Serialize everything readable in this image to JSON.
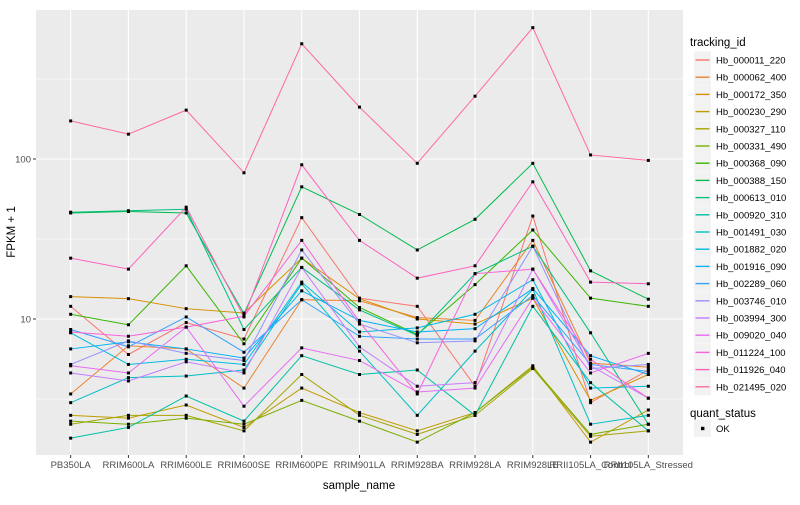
{
  "chart_data": {
    "type": "line",
    "title": "",
    "xlabel": "sample_name",
    "ylabel": "FPKM + 1",
    "y_scale": "log10",
    "ylim": [
      1.4,
      855
    ],
    "grid": "on",
    "legend_position": "right",
    "y_ticks": [
      {
        "label": "100",
        "value": 100
      },
      {
        "label": "10",
        "value": 10
      }
    ],
    "y_minor_gridlines": [
      3.1623,
      31.623,
      316.23
    ],
    "categories": [
      "PB350LA",
      "RRIM600LA",
      "RRIM600LE",
      "RRIM600SE",
      "RRIM600PE",
      "RRIM901LA",
      "RRIM928BA",
      "RRIM928LA",
      "RRIM928LE",
      "RRII105LA_Control",
      "RRII105LA_Stressed"
    ],
    "legend": {
      "title": "tracking_id",
      "quant_title": "quant_status",
      "quant_items": [
        {
          "label": "OK",
          "marker": "black-square"
        }
      ]
    },
    "series": [
      {
        "name": "Hb_000011_220",
        "color": "#F8766D",
        "values": [
          12,
          6.0,
          9.5,
          7.5,
          43,
          13.5,
          12,
          3.8,
          44,
          3.0,
          4.8
        ]
      },
      {
        "name": "Hb_000062_400",
        "color": "#EA8331",
        "values": [
          3.4,
          6.8,
          6.5,
          3.7,
          13.2,
          13,
          10.2,
          9.8,
          31,
          5.3,
          5.0
        ]
      },
      {
        "name": "Hb_000172_350",
        "color": "#D89000",
        "values": [
          13.8,
          13.4,
          11.6,
          10.9,
          24,
          13.4,
          10,
          9.3,
          13.5,
          3.1,
          4.5
        ]
      },
      {
        "name": "Hb_000230_290",
        "color": "#C09B00",
        "values": [
          2.5,
          2.4,
          2.9,
          2.1,
          3.7,
          2.6,
          2.0,
          2.6,
          5.1,
          1.7,
          2.7
        ]
      },
      {
        "name": "Hb_000327_110",
        "color": "#A3A500",
        "values": [
          2.2,
          2.5,
          2.5,
          2.0,
          4.5,
          2.5,
          1.9,
          2.5,
          4.9,
          1.85,
          2.0
        ]
      },
      {
        "name": "Hb_000331_490",
        "color": "#7CAE00",
        "values": [
          2.3,
          2.2,
          2.4,
          2.2,
          3.1,
          2.3,
          1.7,
          2.6,
          5.0,
          1.9,
          2.2
        ]
      },
      {
        "name": "Hb_000368_090",
        "color": "#39B600",
        "values": [
          10.7,
          9.2,
          21.5,
          7.0,
          24,
          11.8,
          8.0,
          16.4,
          36,
          13.5,
          12
        ]
      },
      {
        "name": "Hb_000388_150",
        "color": "#00BB4E",
        "values": [
          46,
          47,
          46,
          10.8,
          67,
          45,
          27,
          42,
          94,
          20,
          13.3
        ]
      },
      {
        "name": "Hb_000613_010",
        "color": "#00BF7D",
        "values": [
          46.5,
          47.5,
          48.5,
          8.6,
          21,
          11.4,
          7.9,
          19.2,
          28.5,
          8.2,
          2.2
        ]
      },
      {
        "name": "Hb_000920_310",
        "color": "#00C1A3",
        "values": [
          1.8,
          2.1,
          3.3,
          2.3,
          5.9,
          4.5,
          4.8,
          2.5,
          12,
          4.0,
          2.0
        ]
      },
      {
        "name": "Hb_001491_030",
        "color": "#00BFC4",
        "values": [
          3.0,
          4.3,
          4.4,
          4.8,
          16.6,
          6.3,
          2.5,
          6.3,
          15.3,
          2.2,
          2.5
        ]
      },
      {
        "name": "Hb_001882_020",
        "color": "#00BAE0",
        "values": [
          8.2,
          5.2,
          5.6,
          5.2,
          17,
          8.3,
          8.8,
          10.7,
          17.6,
          3.7,
          3.8
        ]
      },
      {
        "name": "Hb_001916_090",
        "color": "#00B0F6",
        "values": [
          6.5,
          7.2,
          6.5,
          5.7,
          15,
          9.8,
          8.3,
          8.7,
          15.5,
          5.9,
          4.5
        ]
      },
      {
        "name": "Hb_002289_060",
        "color": "#35A2FF",
        "values": [
          8.6,
          6.7,
          10.3,
          6.2,
          13.2,
          7.8,
          7.5,
          7.5,
          14,
          5.2,
          4.7
        ]
      },
      {
        "name": "Hb_003746_010",
        "color": "#9590FF",
        "values": [
          5.2,
          7.3,
          6.1,
          5.5,
          27,
          9.3,
          7.1,
          7.3,
          28.5,
          4.9,
          5.2
        ]
      },
      {
        "name": "Hb_003994_300",
        "color": "#C77CFF",
        "values": [
          4.6,
          4.1,
          5.4,
          4.6,
          21,
          6.7,
          3.8,
          4.0,
          20.5,
          5.1,
          3.2
        ]
      },
      {
        "name": "Hb_009020_040",
        "color": "#E76BF3",
        "values": [
          5.1,
          4.6,
          8.9,
          2.85,
          6.6,
          5.5,
          3.5,
          3.7,
          13.5,
          4.6,
          6.1
        ]
      },
      {
        "name": "Hb_011224_100",
        "color": "#FA62DB",
        "values": [
          8.3,
          7.8,
          8.9,
          10.4,
          31,
          9.6,
          3.4,
          19.2,
          20.5,
          5.6,
          3.2
        ]
      },
      {
        "name": "Hb_011926_040",
        "color": "#FF62BC",
        "values": [
          24,
          20.5,
          50,
          10.3,
          92,
          31,
          18,
          21.5,
          72,
          17,
          16.6
        ]
      },
      {
        "name": "Hb_021495_020",
        "color": "#FF6A98",
        "values": [
          173,
          143,
          202,
          82,
          525,
          211,
          94,
          247,
          662,
          106,
          98
        ]
      }
    ],
    "colors": {
      "panel_background": "#EBEBEB",
      "gridline": "#FFFFFF",
      "axis_text": "#4D4D4D",
      "tick_mark": "#333333",
      "title_text": "#000000",
      "legend_key_background": "#F2F2F2",
      "point_marker": "#000000"
    }
  }
}
